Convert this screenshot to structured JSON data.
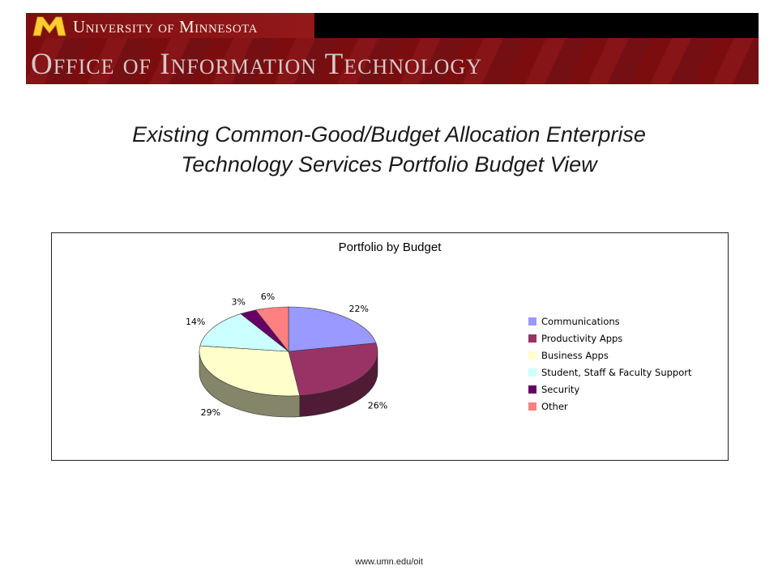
{
  "banner": {
    "university": "University of Minnesota",
    "office": "Office of Information Technology",
    "colors": {
      "maroon": "#7a0019",
      "gold": "#ffcc33"
    }
  },
  "slide": {
    "title_line1": "Existing Common-Good/Budget Allocation Enterprise",
    "title_line2": "Technology Services Portfolio Budget View"
  },
  "chart_data": {
    "type": "pie",
    "title": "Portfolio by Budget",
    "legend_position": "right",
    "categories": [
      "Communications",
      "Productivity Apps",
      "Business Apps",
      "Student, Staff & Faculty Support",
      "Security",
      "Other"
    ],
    "values": [
      22,
      26,
      29,
      14,
      3,
      6
    ],
    "labels": [
      "22%",
      "26%",
      "29%",
      "14%",
      "3%",
      "6%"
    ],
    "colors": [
      "#9999ff",
      "#993366",
      "#ffffcc",
      "#ccffff",
      "#660066",
      "#ff8080"
    ]
  },
  "footer": {
    "url": "www.umn.edu/oit"
  }
}
